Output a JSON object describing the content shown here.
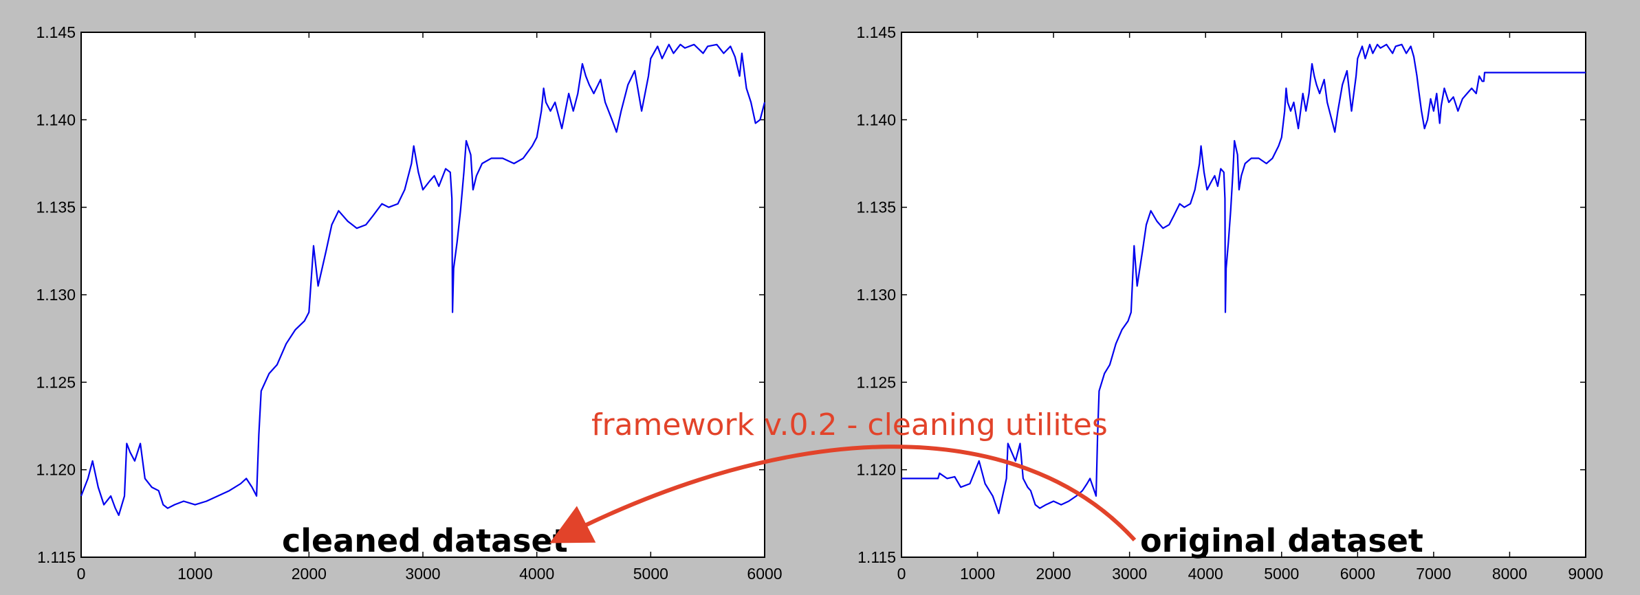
{
  "colors": {
    "background": "#bfbfbf",
    "plot_bg": "#ffffff",
    "series": "#0000ee",
    "annotation": "#e2432a",
    "axis": "#000000"
  },
  "annotations": {
    "framework": "framework v.0.2 - cleaning utilites",
    "cleaned": "cleaned dataset",
    "original": "original dataset"
  },
  "chart_data": [
    {
      "type": "line",
      "xlim": [
        0,
        6000
      ],
      "ylim": [
        1.115,
        1.145
      ],
      "xticks": [
        "0",
        "1000",
        "2000",
        "3000",
        "4000",
        "5000",
        "6000"
      ],
      "yticks": [
        "1.115",
        "1.120",
        "1.125",
        "1.130",
        "1.135",
        "1.140",
        "1.145"
      ],
      "grid": false,
      "annotation": "cleaned dataset",
      "series": [
        {
          "points": [
            [
              0,
              1.1185
            ],
            [
              60,
              1.1195
            ],
            [
              100,
              1.1205
            ],
            [
              150,
              1.119
            ],
            [
              200,
              1.118
            ],
            [
              260,
              1.1185
            ],
            [
              300,
              1.1178
            ],
            [
              330,
              1.1174
            ],
            [
              380,
              1.1185
            ],
            [
              400,
              1.1215
            ],
            [
              430,
              1.121
            ],
            [
              470,
              1.1205
            ],
            [
              520,
              1.1215
            ],
            [
              560,
              1.1195
            ],
            [
              620,
              1.119
            ],
            [
              680,
              1.1188
            ],
            [
              720,
              1.118
            ],
            [
              760,
              1.1178
            ],
            [
              820,
              1.118
            ],
            [
              900,
              1.1182
            ],
            [
              1000,
              1.118
            ],
            [
              1100,
              1.1182
            ],
            [
              1200,
              1.1185
            ],
            [
              1300,
              1.1188
            ],
            [
              1400,
              1.1192
            ],
            [
              1450,
              1.1195
            ],
            [
              1500,
              1.119
            ],
            [
              1540,
              1.1185
            ],
            [
              1560,
              1.122
            ],
            [
              1580,
              1.1245
            ],
            [
              1650,
              1.1255
            ],
            [
              1720,
              1.126
            ],
            [
              1800,
              1.1272
            ],
            [
              1880,
              1.128
            ],
            [
              1960,
              1.1285
            ],
            [
              2000,
              1.129
            ],
            [
              2040,
              1.1328
            ],
            [
              2080,
              1.1305
            ],
            [
              2150,
              1.1325
            ],
            [
              2200,
              1.134
            ],
            [
              2260,
              1.1348
            ],
            [
              2340,
              1.1342
            ],
            [
              2420,
              1.1338
            ],
            [
              2500,
              1.134
            ],
            [
              2560,
              1.1345
            ],
            [
              2640,
              1.1352
            ],
            [
              2700,
              1.135
            ],
            [
              2780,
              1.1352
            ],
            [
              2840,
              1.136
            ],
            [
              2900,
              1.1375
            ],
            [
              2920,
              1.1385
            ],
            [
              2960,
              1.137
            ],
            [
              3000,
              1.136
            ],
            [
              3060,
              1.1365
            ],
            [
              3100,
              1.1368
            ],
            [
              3140,
              1.1362
            ],
            [
              3200,
              1.1372
            ],
            [
              3240,
              1.137
            ],
            [
              3255,
              1.1355
            ],
            [
              3260,
              1.129
            ],
            [
              3270,
              1.1315
            ],
            [
              3300,
              1.133
            ],
            [
              3330,
              1.1348
            ],
            [
              3360,
              1.137
            ],
            [
              3380,
              1.1388
            ],
            [
              3420,
              1.138
            ],
            [
              3440,
              1.136
            ],
            [
              3470,
              1.1368
            ],
            [
              3520,
              1.1375
            ],
            [
              3600,
              1.1378
            ],
            [
              3700,
              1.1378
            ],
            [
              3800,
              1.1375
            ],
            [
              3880,
              1.1378
            ],
            [
              3960,
              1.1385
            ],
            [
              4000,
              1.139
            ],
            [
              4040,
              1.1405
            ],
            [
              4060,
              1.1418
            ],
            [
              4080,
              1.141
            ],
            [
              4120,
              1.1405
            ],
            [
              4160,
              1.141
            ],
            [
              4220,
              1.1395
            ],
            [
              4280,
              1.1415
            ],
            [
              4320,
              1.1405
            ],
            [
              4360,
              1.1415
            ],
            [
              4400,
              1.1432
            ],
            [
              4430,
              1.1425
            ],
            [
              4460,
              1.142
            ],
            [
              4500,
              1.1415
            ],
            [
              4560,
              1.1423
            ],
            [
              4600,
              1.141
            ],
            [
              4660,
              1.14
            ],
            [
              4700,
              1.1393
            ],
            [
              4740,
              1.1405
            ],
            [
              4800,
              1.142
            ],
            [
              4860,
              1.1428
            ],
            [
              4920,
              1.1405
            ],
            [
              4980,
              1.1425
            ],
            [
              5000,
              1.1435
            ],
            [
              5060,
              1.1442
            ],
            [
              5100,
              1.1435
            ],
            [
              5160,
              1.1443
            ],
            [
              5200,
              1.1438
            ],
            [
              5260,
              1.1443
            ],
            [
              5300,
              1.1441
            ],
            [
              5380,
              1.1443
            ],
            [
              5460,
              1.1438
            ],
            [
              5500,
              1.1442
            ],
            [
              5580,
              1.1443
            ],
            [
              5640,
              1.1438
            ],
            [
              5700,
              1.1442
            ],
            [
              5740,
              1.1436
            ],
            [
              5780,
              1.1425
            ],
            [
              5800,
              1.1438
            ],
            [
              5840,
              1.1418
            ],
            [
              5880,
              1.141
            ],
            [
              5920,
              1.1398
            ],
            [
              5960,
              1.14
            ],
            [
              6000,
              1.141
            ]
          ]
        }
      ]
    },
    {
      "type": "line",
      "xlim": [
        0,
        9000
      ],
      "ylim": [
        1.115,
        1.145
      ],
      "xticks": [
        "0",
        "1000",
        "2000",
        "3000",
        "4000",
        "5000",
        "6000",
        "7000",
        "8000",
        "9000"
      ],
      "yticks": [
        "1.115",
        "1.120",
        "1.125",
        "1.130",
        "1.135",
        "1.140",
        "1.145"
      ],
      "grid": false,
      "annotation": "original dataset",
      "series": [
        {
          "points": [
            [
              0,
              1.1195
            ],
            [
              480,
              1.1195
            ],
            [
              500,
              1.1198
            ],
            [
              600,
              1.1195
            ],
            [
              700,
              1.1196
            ],
            [
              780,
              1.119
            ],
            [
              900,
              1.1192
            ],
            [
              1020,
              1.1205
            ],
            [
              1100,
              1.1192
            ],
            [
              1200,
              1.1185
            ],
            [
              1280,
              1.1175
            ],
            [
              1330,
              1.1185
            ],
            [
              1380,
              1.1195
            ],
            [
              1400,
              1.1215
            ],
            [
              1450,
              1.121
            ],
            [
              1500,
              1.1205
            ],
            [
              1560,
              1.1215
            ],
            [
              1600,
              1.1195
            ],
            [
              1660,
              1.119
            ],
            [
              1700,
              1.1188
            ],
            [
              1760,
              1.118
            ],
            [
              1820,
              1.1178
            ],
            [
              1900,
              1.118
            ],
            [
              2000,
              1.1182
            ],
            [
              2100,
              1.118
            ],
            [
              2200,
              1.1182
            ],
            [
              2300,
              1.1185
            ],
            [
              2380,
              1.1188
            ],
            [
              2440,
              1.1192
            ],
            [
              2480,
              1.1195
            ],
            [
              2520,
              1.119
            ],
            [
              2560,
              1.1185
            ],
            [
              2580,
              1.122
            ],
            [
              2600,
              1.1245
            ],
            [
              2670,
              1.1255
            ],
            [
              2740,
              1.126
            ],
            [
              2820,
              1.1272
            ],
            [
              2900,
              1.128
            ],
            [
              2980,
              1.1285
            ],
            [
              3020,
              1.129
            ],
            [
              3060,
              1.1328
            ],
            [
              3100,
              1.1305
            ],
            [
              3170,
              1.1325
            ],
            [
              3220,
              1.134
            ],
            [
              3280,
              1.1348
            ],
            [
              3360,
              1.1342
            ],
            [
              3440,
              1.1338
            ],
            [
              3520,
              1.134
            ],
            [
              3580,
              1.1345
            ],
            [
              3660,
              1.1352
            ],
            [
              3720,
              1.135
            ],
            [
              3800,
              1.1352
            ],
            [
              3860,
              1.136
            ],
            [
              3920,
              1.1375
            ],
            [
              3940,
              1.1385
            ],
            [
              3980,
              1.137
            ],
            [
              4020,
              1.136
            ],
            [
              4080,
              1.1365
            ],
            [
              4120,
              1.1368
            ],
            [
              4160,
              1.1362
            ],
            [
              4200,
              1.1372
            ],
            [
              4240,
              1.137
            ],
            [
              4255,
              1.1355
            ],
            [
              4260,
              1.129
            ],
            [
              4270,
              1.1315
            ],
            [
              4300,
              1.133
            ],
            [
              4330,
              1.1348
            ],
            [
              4360,
              1.137
            ],
            [
              4380,
              1.1388
            ],
            [
              4420,
              1.138
            ],
            [
              4440,
              1.136
            ],
            [
              4470,
              1.1368
            ],
            [
              4520,
              1.1375
            ],
            [
              4600,
              1.1378
            ],
            [
              4700,
              1.1378
            ],
            [
              4800,
              1.1375
            ],
            [
              4880,
              1.1378
            ],
            [
              4960,
              1.1385
            ],
            [
              5000,
              1.139
            ],
            [
              5040,
              1.1405
            ],
            [
              5060,
              1.1418
            ],
            [
              5080,
              1.141
            ],
            [
              5120,
              1.1405
            ],
            [
              5160,
              1.141
            ],
            [
              5220,
              1.1395
            ],
            [
              5280,
              1.1415
            ],
            [
              5320,
              1.1405
            ],
            [
              5360,
              1.1415
            ],
            [
              5400,
              1.1432
            ],
            [
              5430,
              1.1425
            ],
            [
              5460,
              1.142
            ],
            [
              5500,
              1.1415
            ],
            [
              5560,
              1.1423
            ],
            [
              5600,
              1.141
            ],
            [
              5660,
              1.14
            ],
            [
              5700,
              1.1393
            ],
            [
              5740,
              1.1405
            ],
            [
              5800,
              1.142
            ],
            [
              5860,
              1.1428
            ],
            [
              5920,
              1.1405
            ],
            [
              5980,
              1.1425
            ],
            [
              6000,
              1.1435
            ],
            [
              6060,
              1.1442
            ],
            [
              6100,
              1.1435
            ],
            [
              6160,
              1.1443
            ],
            [
              6200,
              1.1438
            ],
            [
              6260,
              1.1443
            ],
            [
              6300,
              1.1441
            ],
            [
              6380,
              1.1443
            ],
            [
              6460,
              1.1438
            ],
            [
              6500,
              1.1442
            ],
            [
              6580,
              1.1443
            ],
            [
              6640,
              1.1438
            ],
            [
              6700,
              1.1442
            ],
            [
              6740,
              1.1436
            ],
            [
              6780,
              1.1425
            ],
            [
              6800,
              1.1418
            ],
            [
              6840,
              1.1405
            ],
            [
              6880,
              1.1395
            ],
            [
              6920,
              1.14
            ],
            [
              6960,
              1.1412
            ],
            [
              7000,
              1.1405
            ],
            [
              7040,
              1.1415
            ],
            [
              7080,
              1.1398
            ],
            [
              7100,
              1.1408
            ],
            [
              7140,
              1.1418
            ],
            [
              7200,
              1.141
            ],
            [
              7260,
              1.1413
            ],
            [
              7320,
              1.1405
            ],
            [
              7380,
              1.1412
            ],
            [
              7440,
              1.1415
            ],
            [
              7500,
              1.1418
            ],
            [
              7560,
              1.1415
            ],
            [
              7600,
              1.1425
            ],
            [
              7640,
              1.1422
            ],
            [
              7660,
              1.1422
            ],
            [
              7670,
              1.1427
            ],
            [
              9000,
              1.1427
            ]
          ]
        }
      ]
    }
  ]
}
